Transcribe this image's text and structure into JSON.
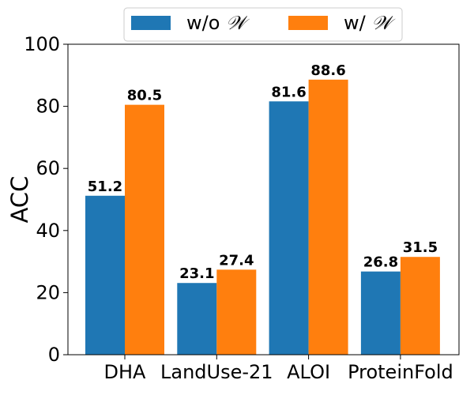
{
  "chart_data": {
    "type": "bar",
    "title": "",
    "xlabel": "",
    "ylabel": "ACC",
    "ylim": [
      0,
      100
    ],
    "yticks": [
      0,
      20,
      40,
      60,
      80,
      100
    ],
    "categories": [
      "DHA",
      "LandUse-21",
      "ALOI",
      "ProteinFold"
    ],
    "series": [
      {
        "name": "w/o 𝒲",
        "color": "#1f77b4",
        "values": [
          51.2,
          23.1,
          81.6,
          26.8
        ]
      },
      {
        "name": "w/ 𝒲",
        "color": "#ff7f0e",
        "values": [
          80.5,
          27.4,
          88.6,
          31.5
        ]
      }
    ],
    "legend": {
      "position": "top-center",
      "entries": [
        {
          "prefix": "w/o ",
          "symbol": "𝒲"
        },
        {
          "prefix": "w/ ",
          "symbol": "𝒲"
        }
      ]
    },
    "grid": false
  }
}
